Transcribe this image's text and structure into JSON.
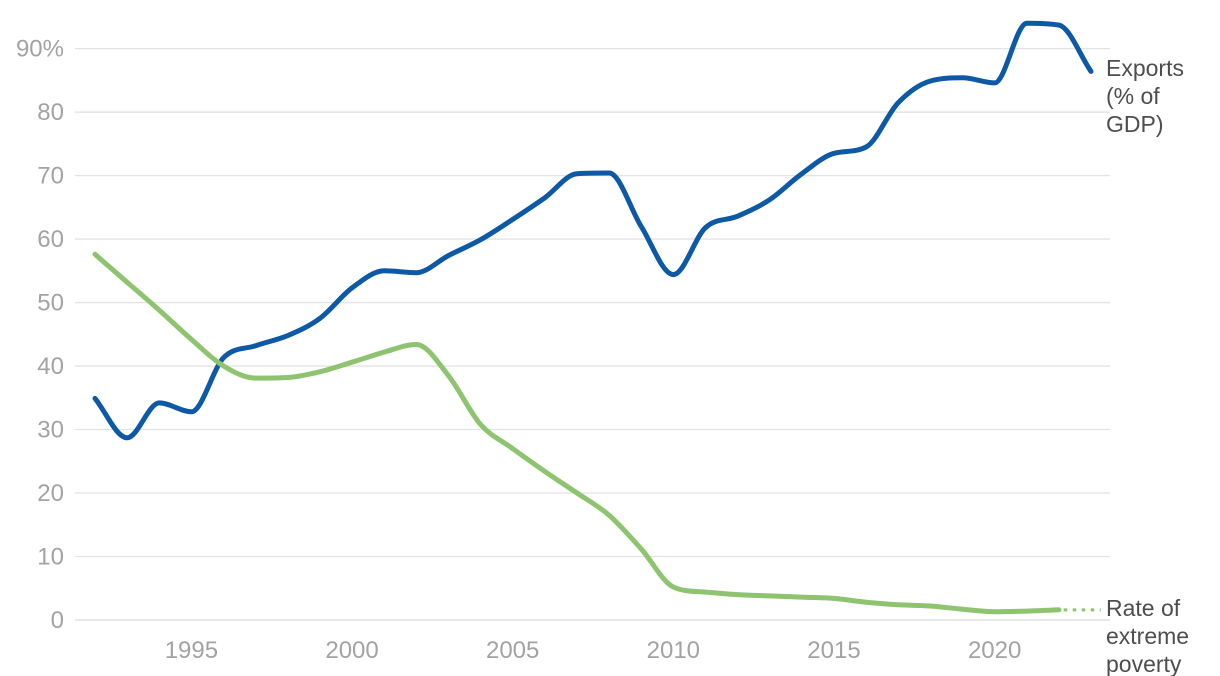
{
  "chart_data": {
    "type": "line",
    "title": "",
    "grid": true,
    "legend_position": "right-of-line-ends",
    "x_axis": {
      "range": [
        1992,
        2023.5
      ],
      "tick_values": [
        1995,
        2000,
        2005,
        2010,
        2015,
        2020
      ],
      "tick_labels": [
        "1995",
        "2000",
        "2005",
        "2010",
        "2015",
        "2020"
      ]
    },
    "y_axis": {
      "range": [
        0,
        97
      ],
      "unit": "%",
      "tick_values": [
        0,
        10,
        20,
        30,
        40,
        50,
        60,
        70,
        80,
        90
      ],
      "tick_labels": [
        "0",
        "10",
        "20",
        "30",
        "40",
        "50",
        "60",
        "70",
        "80",
        "90%"
      ]
    },
    "series": [
      {
        "name": "Exports (% of GDP)",
        "label_lines": [
          "Exports",
          "(% of",
          "GDP)"
        ],
        "color": "#0e59a6",
        "style": "solid",
        "x_start": 1992,
        "x_step": 1,
        "values": [
          34.9,
          28.7,
          34.2,
          32.8,
          41.3,
          43.2,
          44.8,
          47.5,
          52.3,
          55.0,
          54.7,
          57.4,
          59.9,
          63.1,
          66.5,
          70.3,
          70.4,
          62.0,
          54.4,
          61.8,
          63.6,
          66.2,
          70.3,
          73.5,
          74.5,
          81.5,
          84.9,
          85.4,
          84.6,
          94.0,
          93.7,
          86.4
        ]
      },
      {
        "name": "Rate of extreme poverty",
        "label_lines": [
          "Rate of",
          "extreme",
          "poverty"
        ],
        "color": "#8ec46f",
        "style": "solid",
        "x_start": 1992,
        "x_step": 1,
        "values": [
          57.6,
          53.2,
          48.8,
          44.2,
          40.0,
          38.1,
          38.2,
          39.1,
          40.6,
          42.2,
          43.4,
          38.5,
          30.8,
          27.0,
          23.4,
          20.0,
          16.5,
          11.2,
          5.2,
          4.4,
          4.0,
          3.8,
          3.6,
          3.4,
          2.8,
          2.4,
          2.2,
          1.7,
          1.3,
          1.4,
          1.6
        ],
        "projection": {
          "style": "dotted",
          "x_from": 2022.15,
          "x_to": 2023.3,
          "value": 1.6
        }
      }
    ]
  },
  "colors": {
    "background": "#ffffff",
    "gridline": "#e3e3e3",
    "zero_gridline": "#d9d9d9",
    "tick_label": "#a3a3a3",
    "series_label": "#4e4e4e",
    "exports_line": "#0e59a6",
    "poverty_line": "#8ec46f"
  }
}
